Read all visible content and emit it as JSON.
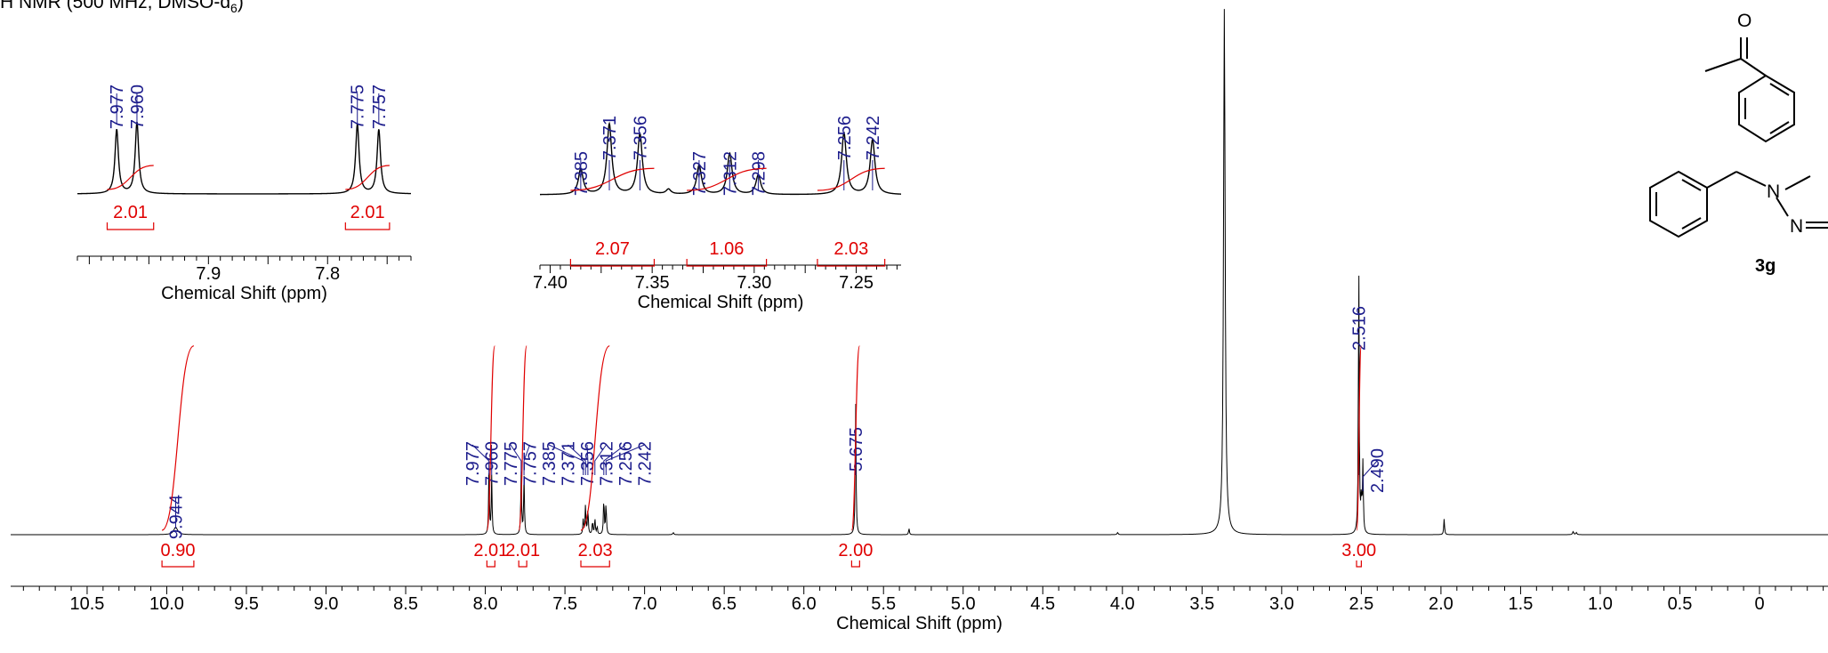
{
  "title": {
    "main": "H NMR (500 MHz, DMSO-d",
    "sub": "6",
    "close": ")"
  },
  "compound": {
    "label": "3g",
    "atoms": [
      "O",
      "N",
      "N"
    ]
  },
  "colors": {
    "spectrum": "#000000",
    "peak_label": "#1c1c8c",
    "integral": "#e00000"
  },
  "chart_data": [
    {
      "id": "main",
      "type": "line",
      "xlabel": "Chemical Shift (ppm)",
      "xlim": [
        10.98,
        -0.43
      ],
      "reversed_x": true,
      "ticks": [
        "10.5",
        "10.0",
        "9.5",
        "9.0",
        "8.5",
        "8.0",
        "7.5",
        "7.0",
        "6.5",
        "6.0",
        "5.5",
        "5.0",
        "4.5",
        "4.0",
        "3.5",
        "3.0",
        "2.5",
        "2.0",
        "1.5",
        "1.0",
        "0.5",
        "0"
      ],
      "peaks": [
        {
          "ppm": 9.944,
          "height": 0.014,
          "width": 0.03
        },
        {
          "ppm": 7.977,
          "height": 0.12,
          "width": 0.006
        },
        {
          "ppm": 7.96,
          "height": 0.11,
          "width": 0.006
        },
        {
          "ppm": 7.775,
          "height": 0.12,
          "width": 0.006
        },
        {
          "ppm": 7.757,
          "height": 0.11,
          "width": 0.006
        },
        {
          "ppm": 7.385,
          "height": 0.03,
          "width": 0.006
        },
        {
          "ppm": 7.371,
          "height": 0.055,
          "width": 0.006
        },
        {
          "ppm": 7.356,
          "height": 0.05,
          "width": 0.006
        },
        {
          "ppm": 7.327,
          "height": 0.025,
          "width": 0.006
        },
        {
          "ppm": 7.312,
          "height": 0.03,
          "width": 0.006
        },
        {
          "ppm": 7.298,
          "height": 0.015,
          "width": 0.006
        },
        {
          "ppm": 7.256,
          "height": 0.07,
          "width": 0.006
        },
        {
          "ppm": 7.242,
          "height": 0.06,
          "width": 0.006
        },
        {
          "ppm": 6.82,
          "height": 0.004,
          "width": 0.008
        },
        {
          "ppm": 5.675,
          "height": 0.26,
          "width": 0.006
        },
        {
          "ppm": 5.34,
          "height": 0.012,
          "width": 0.006
        },
        {
          "ppm": 3.36,
          "height": 1.0,
          "width": 0.012
        },
        {
          "ppm": 2.516,
          "height": 0.52,
          "width": 0.006
        },
        {
          "ppm": 2.49,
          "height": 0.13,
          "width": 0.006
        },
        {
          "ppm": 2.5,
          "height": 0.06,
          "width": 0.008
        },
        {
          "ppm": 1.98,
          "height": 0.03,
          "width": 0.006
        },
        {
          "ppm": 4.03,
          "height": 0.004,
          "width": 0.008
        },
        {
          "ppm": 1.17,
          "height": 0.006,
          "width": 0.008
        },
        {
          "ppm": 1.15,
          "height": 0.004,
          "width": 0.008
        }
      ],
      "peak_labels": [
        {
          "text": "9.944",
          "ppm": 9.944
        },
        {
          "text": "7.977",
          "ppm": 7.977
        },
        {
          "text": "7.960",
          "ppm": 7.96
        },
        {
          "text": "7.775",
          "ppm": 7.775
        },
        {
          "text": "7.757",
          "ppm": 7.757
        },
        {
          "text": "7.385",
          "ppm": 7.385
        },
        {
          "text": "7.371",
          "ppm": 7.371
        },
        {
          "text": "7.356",
          "ppm": 7.356
        },
        {
          "text": "7.312",
          "ppm": 7.312
        },
        {
          "text": "7.256",
          "ppm": 7.256
        },
        {
          "text": "7.242",
          "ppm": 7.242
        },
        {
          "text": "5.675",
          "ppm": 5.675
        },
        {
          "text": "2.516",
          "ppm": 2.516
        },
        {
          "text": "2.490",
          "ppm": 2.49
        }
      ],
      "integrals": [
        {
          "value": "0.90",
          "from": 10.03,
          "to": 9.83
        },
        {
          "value": "2.01",
          "from": 7.99,
          "to": 7.94
        },
        {
          "value": "2.01",
          "from": 7.79,
          "to": 7.74
        },
        {
          "value": "2.03",
          "from": 7.4,
          "to": 7.22
        },
        {
          "value": "2.00",
          "from": 5.7,
          "to": 5.65
        },
        {
          "value": "3.00",
          "from": 2.53,
          "to": 2.5
        }
      ]
    },
    {
      "id": "inset1",
      "type": "line",
      "xlabel": "Chemical Shift (ppm)",
      "xlim": [
        8.01,
        7.73
      ],
      "reversed_x": true,
      "ticks": [
        "7.9",
        "7.8"
      ],
      "peaks": [
        {
          "ppm": 7.977,
          "height": 0.6,
          "width": 0.0035
        },
        {
          "ppm": 7.96,
          "height": 0.67,
          "width": 0.0035
        },
        {
          "ppm": 7.775,
          "height": 0.65,
          "width": 0.0035
        },
        {
          "ppm": 7.757,
          "height": 0.6,
          "width": 0.0035
        }
      ],
      "peak_labels": [
        {
          "text": "7.977",
          "ppm": 7.977
        },
        {
          "text": "7.960",
          "ppm": 7.96
        },
        {
          "text": "7.775",
          "ppm": 7.775
        },
        {
          "text": "7.757",
          "ppm": 7.757
        }
      ],
      "integrals": [
        {
          "value": "2.01",
          "from": 7.985,
          "to": 7.946
        },
        {
          "value": "2.01",
          "from": 7.785,
          "to": 7.748
        }
      ]
    },
    {
      "id": "inset2",
      "type": "line",
      "xlabel": "Chemical Shift (ppm)",
      "xlim": [
        7.405,
        7.228
      ],
      "reversed_x": true,
      "ticks": [
        "7.40",
        "7.35",
        "7.30",
        "7.25"
      ],
      "peaks": [
        {
          "ppm": 7.385,
          "height": 0.26,
          "width": 0.0028
        },
        {
          "ppm": 7.371,
          "height": 0.72,
          "width": 0.0028
        },
        {
          "ppm": 7.356,
          "height": 0.62,
          "width": 0.0028
        },
        {
          "ppm": 7.342,
          "height": 0.05,
          "width": 0.0028
        },
        {
          "ppm": 7.327,
          "height": 0.3,
          "width": 0.0028
        },
        {
          "ppm": 7.312,
          "height": 0.42,
          "width": 0.0028
        },
        {
          "ppm": 7.298,
          "height": 0.2,
          "width": 0.0028
        },
        {
          "ppm": 7.256,
          "height": 0.63,
          "width": 0.0028
        },
        {
          "ppm": 7.242,
          "height": 0.56,
          "width": 0.0028
        }
      ],
      "peak_labels": [
        {
          "text": "7.385",
          "ppm": 7.385
        },
        {
          "text": "7.371",
          "ppm": 7.371
        },
        {
          "text": "7.356",
          "ppm": 7.356
        },
        {
          "text": "7.327",
          "ppm": 7.327
        },
        {
          "text": "7.312",
          "ppm": 7.312
        },
        {
          "text": "7.298",
          "ppm": 7.298
        },
        {
          "text": "7.256",
          "ppm": 7.256
        },
        {
          "text": "7.242",
          "ppm": 7.242
        }
      ],
      "integrals": [
        {
          "value": "2.07",
          "from": 7.39,
          "to": 7.349
        },
        {
          "value": "1.06",
          "from": 7.333,
          "to": 7.294
        },
        {
          "value": "2.03",
          "from": 7.269,
          "to": 7.236
        }
      ]
    }
  ]
}
